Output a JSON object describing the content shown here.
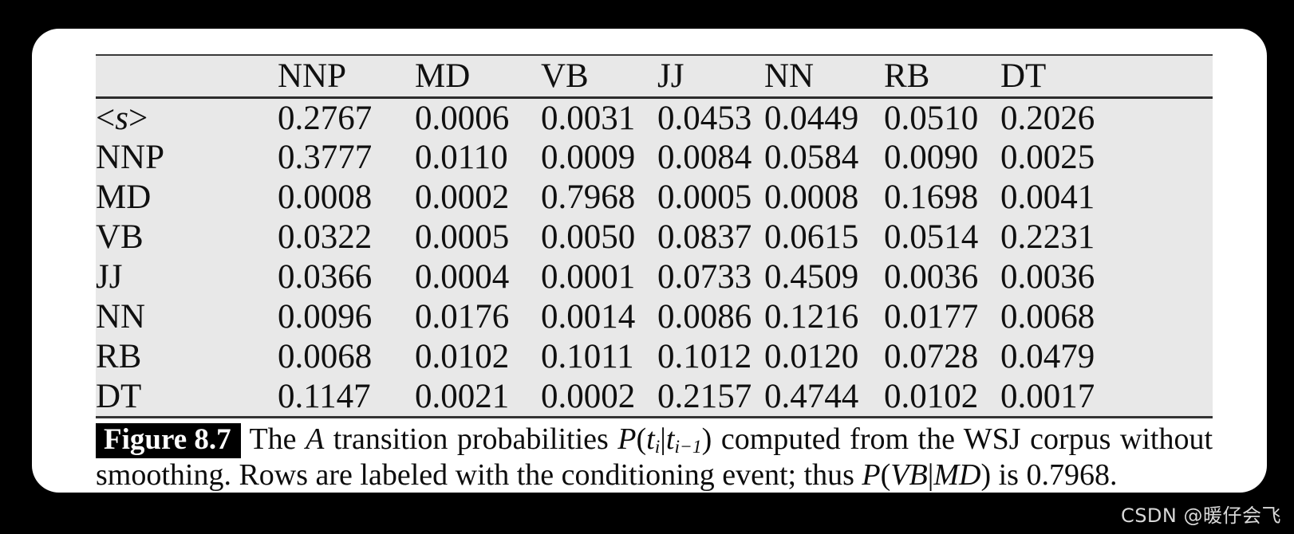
{
  "colors": {
    "background": "#000000",
    "card": "#ffffff",
    "table_background": "#e8e8e8",
    "rule": "#343434",
    "text": "#101010",
    "figure_label_background": "#000000",
    "figure_label_text": "#ffffff",
    "watermark_text": "#d9d9d9"
  },
  "table": {
    "col_headers": [
      "NNP",
      "MD",
      "VB",
      "JJ",
      "NN",
      "RB",
      "DT"
    ],
    "rows": [
      {
        "label": "<s>",
        "values": [
          "0.2767",
          "0.0006",
          "0.0031",
          "0.0453",
          "0.0449",
          "0.0510",
          "0.2026"
        ]
      },
      {
        "label": "NNP",
        "values": [
          "0.3777",
          "0.0110",
          "0.0009",
          "0.0084",
          "0.0584",
          "0.0090",
          "0.0025"
        ]
      },
      {
        "label": "MD",
        "values": [
          "0.0008",
          "0.0002",
          "0.7968",
          "0.0005",
          "0.0008",
          "0.1698",
          "0.0041"
        ]
      },
      {
        "label": "VB",
        "values": [
          "0.0322",
          "0.0005",
          "0.0050",
          "0.0837",
          "0.0615",
          "0.0514",
          "0.2231"
        ]
      },
      {
        "label": "JJ",
        "values": [
          "0.0366",
          "0.0004",
          "0.0001",
          "0.0733",
          "0.4509",
          "0.0036",
          "0.0036"
        ]
      },
      {
        "label": "NN",
        "values": [
          "0.0096",
          "0.0176",
          "0.0014",
          "0.0086",
          "0.1216",
          "0.0177",
          "0.0068"
        ]
      },
      {
        "label": "RB",
        "values": [
          "0.0068",
          "0.0102",
          "0.1011",
          "0.1012",
          "0.0120",
          "0.0728",
          "0.0479"
        ]
      },
      {
        "label": "DT",
        "values": [
          "0.1147",
          "0.0021",
          "0.0002",
          "0.2157",
          "0.4744",
          "0.0102",
          "0.0017"
        ]
      }
    ]
  },
  "caption": {
    "figure_label": "Figure 8.7",
    "segments": {
      "intro": "The ",
      "var_a": "A",
      "mid": " transition probabilities ",
      "p1": "P",
      "open1": "(",
      "t1": "t",
      "sub1": "i",
      "bar1": "|",
      "t2": "t",
      "sub2": "i−1",
      "close1": ")",
      "tail": " computed from the WSJ corpus without",
      "line2_start": "smoothing. Rows are labeled with the conditioning event; thus ",
      "p2": "P",
      "open2": "(",
      "vb": "VB",
      "bar2": "|",
      "md": "MD",
      "close2": ")",
      "line2_end": " is 0.7968."
    }
  },
  "watermark": "CSDN @暖仔会飞"
}
